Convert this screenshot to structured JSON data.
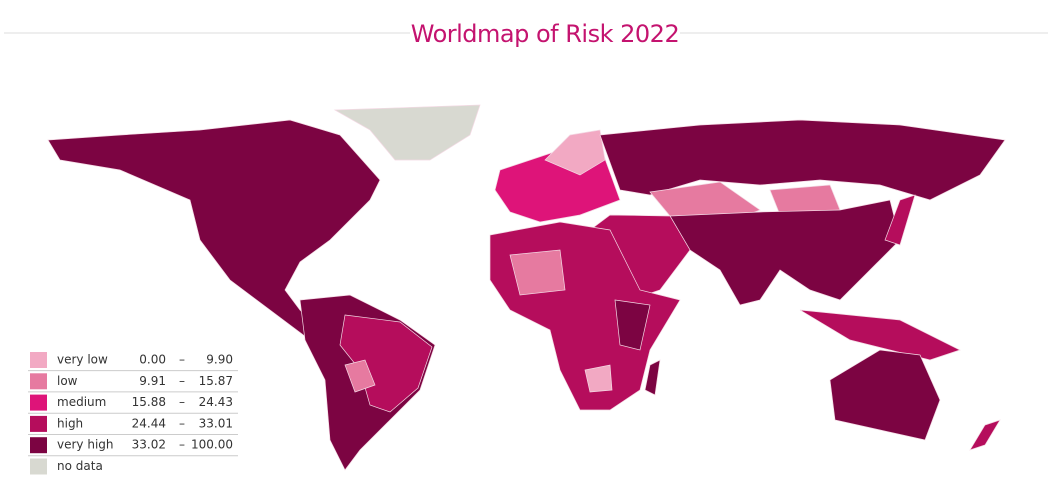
{
  "header": {
    "title": "Worldmap of Risk 2022"
  },
  "legend": {
    "range_separator": "–",
    "items": [
      {
        "label": "very low",
        "min": "0.00",
        "max": "9.90",
        "color": "#f2a9c3"
      },
      {
        "label": "low",
        "min": "9.91",
        "max": "15.87",
        "color": "#e67aa0"
      },
      {
        "label": "medium",
        "min": "15.88",
        "max": "24.43",
        "color": "#de1479"
      },
      {
        "label": "high",
        "min": "24.44",
        "max": "33.01",
        "color": "#b50d5c"
      },
      {
        "label": "very high",
        "min": "33.02",
        "max": "100.00",
        "color": "#7c0442"
      },
      {
        "label": "no data",
        "color": "#d8d9d1"
      }
    ]
  }
}
